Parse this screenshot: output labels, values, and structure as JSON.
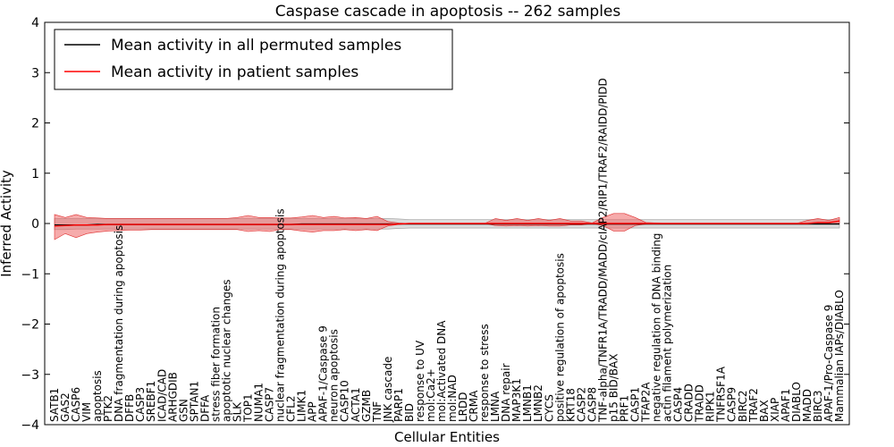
{
  "chart_data": {
    "type": "line",
    "title": "Caspase cascade in apoptosis -- 262 samples",
    "xlabel": "Cellular Entities",
    "ylabel": "Inferred Activity",
    "ylim": [
      -4,
      4
    ],
    "yticks": [
      -4,
      -3,
      -2,
      -1,
      0,
      1,
      2,
      3,
      4
    ],
    "ytick_labels": [
      "−4",
      "−3",
      "−2",
      "−1",
      "0",
      "1",
      "2",
      "3",
      "4"
    ],
    "legend_position": "upper-left",
    "categories": [
      "SATB1",
      "GAS2",
      "CASP6",
      "VIM",
      "apoptosis",
      "PTK2",
      "DNA fragmentation during apoptosis",
      "DFFB",
      "CASP3",
      "SREBF1",
      "ICAD/CAD",
      "ARHGDIB",
      "GSN",
      "SPTAN1",
      "DFFA",
      "stress fiber formation",
      "apoptotic nuclear changes",
      "SLK",
      "TOP1",
      "NUMA1",
      "CASP7",
      "nuclear fragmentation during apoptosis",
      "CFL2",
      "LIMK1",
      "APP",
      "APAF-1/Caspase 9",
      "neuron apoptosis",
      "CASP10",
      "ACTA1",
      "GZMB",
      "TNF",
      "JNK cascade",
      "PARP1",
      "BID",
      "response to UV",
      "mol:Ca2+",
      "mol:Activated DNA",
      "mol:NAD",
      "LRDD",
      "CRMA",
      "response to stress",
      "LMNA",
      "DNA repair",
      "MAP3K1",
      "LMNB1",
      "LMNB2",
      "CYCS",
      "positive regulation of apoptosis",
      "KRT18",
      "CASP2",
      "CASP8",
      "TNF-alpha/TNFR1A/TRADD/MADD/cIAP2/RIP1/TRAF2/RAIDD/PIDD",
      "p15 BID/BAX",
      "PRF1",
      "CASP1",
      "TFAP2A",
      "negative regulation of DNA binding",
      "actin filament polymerization",
      "CASP4",
      "CRADD",
      "TRADD",
      "RIPK1",
      "TNFRSF1A",
      "CASP9",
      "BIRC2",
      "TRAF2",
      "BAX",
      "XIAP",
      "APAF1",
      "DIABLO",
      "MADD",
      "BIRC3",
      "APAF-1/Pro-Caspase 9",
      "Mammalian IAPs/DIABLO"
    ],
    "series": [
      {
        "name": "Mean activity in all permuted samples",
        "color": "#000000",
        "values": [
          -0.03,
          -0.03,
          -0.03,
          -0.03,
          -0.02,
          -0.02,
          -0.02,
          -0.02,
          -0.02,
          -0.02,
          -0.02,
          -0.02,
          -0.02,
          -0.02,
          -0.02,
          -0.02,
          -0.02,
          -0.02,
          -0.02,
          -0.02,
          -0.02,
          -0.02,
          -0.02,
          -0.01,
          -0.01,
          -0.01,
          -0.01,
          -0.01,
          -0.01,
          -0.01,
          -0.01,
          -0.01,
          -0.01,
          -0.01,
          -0.01,
          -0.01,
          -0.01,
          -0.01,
          -0.01,
          -0.01,
          -0.01,
          -0.01,
          -0.01,
          -0.01,
          -0.01,
          -0.01,
          -0.01,
          -0.01,
          -0.01,
          -0.01,
          -0.01,
          -0.01,
          -0.01,
          -0.01,
          -0.01,
          -0.01,
          -0.01,
          -0.01,
          -0.01,
          -0.01,
          -0.01,
          -0.01,
          -0.01,
          -0.01,
          -0.01,
          -0.01,
          -0.01,
          -0.01,
          -0.01,
          -0.01,
          -0.01,
          -0.01,
          -0.01,
          -0.01
        ],
        "lower": [
          -0.12,
          -0.12,
          -0.11,
          -0.11,
          -0.11,
          -0.11,
          -0.11,
          -0.11,
          -0.11,
          -0.11,
          -0.11,
          -0.11,
          -0.11,
          -0.11,
          -0.11,
          -0.11,
          -0.11,
          -0.11,
          -0.11,
          -0.11,
          -0.11,
          -0.11,
          -0.11,
          -0.11,
          -0.11,
          -0.11,
          -0.11,
          -0.11,
          -0.11,
          -0.11,
          -0.11,
          -0.11,
          -0.1,
          -0.09,
          -0.09,
          -0.09,
          -0.09,
          -0.09,
          -0.09,
          -0.09,
          -0.09,
          -0.09,
          -0.09,
          -0.09,
          -0.09,
          -0.09,
          -0.09,
          -0.09,
          -0.09,
          -0.09,
          -0.09,
          -0.09,
          -0.09,
          -0.09,
          -0.09,
          -0.09,
          -0.09,
          -0.09,
          -0.09,
          -0.09,
          -0.09,
          -0.09,
          -0.09,
          -0.09,
          -0.09,
          -0.09,
          -0.09,
          -0.09,
          -0.09,
          -0.09,
          -0.09,
          -0.09,
          -0.09,
          -0.09
        ],
        "upper": [
          0.1,
          0.1,
          0.1,
          0.1,
          0.1,
          0.1,
          0.1,
          0.1,
          0.1,
          0.1,
          0.1,
          0.1,
          0.1,
          0.1,
          0.1,
          0.1,
          0.1,
          0.1,
          0.1,
          0.1,
          0.1,
          0.1,
          0.1,
          0.1,
          0.1,
          0.1,
          0.1,
          0.1,
          0.1,
          0.1,
          0.1,
          0.1,
          0.09,
          0.08,
          0.08,
          0.08,
          0.08,
          0.08,
          0.08,
          0.08,
          0.08,
          0.08,
          0.08,
          0.08,
          0.08,
          0.08,
          0.08,
          0.08,
          0.08,
          0.08,
          0.08,
          0.08,
          0.08,
          0.08,
          0.08,
          0.08,
          0.08,
          0.08,
          0.08,
          0.08,
          0.08,
          0.08,
          0.08,
          0.08,
          0.08,
          0.08,
          0.08,
          0.08,
          0.08,
          0.08,
          0.08,
          0.08,
          0.08,
          0.08
        ]
      },
      {
        "name": "Mean activity in patient samples",
        "color": "#ff0000",
        "values": [
          -0.05,
          -0.04,
          -0.03,
          -0.03,
          -0.03,
          -0.02,
          -0.02,
          -0.02,
          -0.02,
          -0.02,
          -0.02,
          -0.02,
          -0.02,
          -0.02,
          -0.02,
          -0.02,
          -0.02,
          -0.02,
          -0.02,
          -0.02,
          -0.02,
          -0.02,
          -0.02,
          -0.02,
          -0.02,
          -0.02,
          -0.02,
          -0.02,
          -0.02,
          -0.02,
          -0.02,
          -0.02,
          -0.01,
          0,
          0,
          0,
          0,
          0,
          0,
          0,
          0,
          0,
          0,
          0,
          0,
          0,
          0,
          0,
          0,
          0,
          0,
          0,
          0,
          0,
          0,
          0,
          0,
          0,
          0,
          0,
          0,
          0,
          0,
          0,
          0,
          0,
          0,
          0,
          0,
          0,
          0,
          0.02,
          0.02,
          0.05
        ],
        "lower": [
          -0.32,
          -0.2,
          -0.28,
          -0.2,
          -0.17,
          -0.15,
          -0.14,
          -0.13,
          -0.13,
          -0.12,
          -0.12,
          -0.12,
          -0.12,
          -0.12,
          -0.12,
          -0.12,
          -0.12,
          -0.12,
          -0.16,
          -0.14,
          -0.16,
          -0.12,
          -0.12,
          -0.15,
          -0.17,
          -0.14,
          -0.14,
          -0.12,
          -0.14,
          -0.12,
          -0.14,
          -0.05,
          -0.02,
          0,
          0,
          0,
          0,
          0,
          0,
          0,
          0,
          -0.04,
          -0.05,
          -0.04,
          -0.05,
          -0.04,
          -0.05,
          -0.05,
          -0.03,
          -0.03,
          0,
          -0.04,
          -0.15,
          -0.15,
          -0.04,
          -0.01,
          0,
          0,
          0,
          0,
          0,
          0,
          0,
          0,
          0,
          0,
          0,
          0,
          0,
          0,
          0,
          0,
          0,
          0
        ],
        "upper": [
          0.18,
          0.12,
          0.18,
          0.12,
          0.11,
          0.1,
          0.1,
          0.1,
          0.1,
          0.1,
          0.1,
          0.1,
          0.1,
          0.1,
          0.1,
          0.1,
          0.1,
          0.12,
          0.16,
          0.12,
          0.12,
          0.11,
          0.11,
          0.13,
          0.16,
          0.12,
          0.14,
          0.11,
          0.12,
          0.1,
          0.14,
          0.04,
          0.01,
          0,
          0,
          0,
          0,
          0,
          0,
          0,
          0,
          0.1,
          0.06,
          0.1,
          0.06,
          0.1,
          0.06,
          0.1,
          0.05,
          0.05,
          0.01,
          0.12,
          0.2,
          0.2,
          0.12,
          0.02,
          0.01,
          0,
          0,
          0,
          0,
          0,
          0,
          0,
          0,
          0,
          0,
          0,
          0,
          0,
          0.06,
          0.1,
          0.06,
          0.12
        ]
      }
    ]
  }
}
